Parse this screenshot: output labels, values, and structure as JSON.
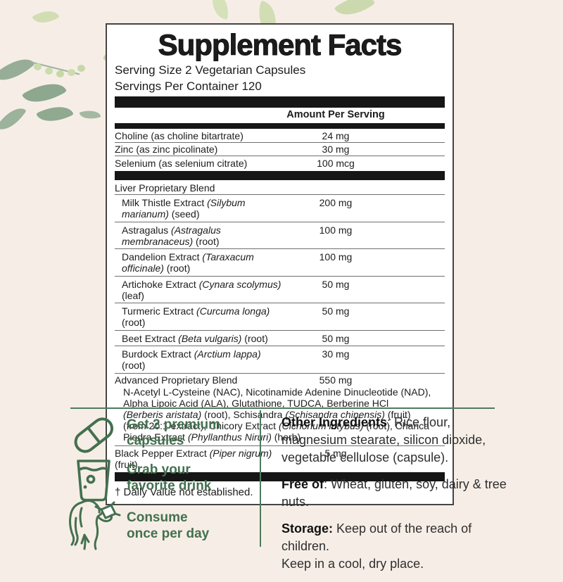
{
  "colors": {
    "background": "#f6eee6",
    "accent_green": "#44704f",
    "divider_green": "#4e7a5f",
    "bar_black": "#161616",
    "panel_white": "#ffffff"
  },
  "panel": {
    "title": "Supplement Facts",
    "serving_size": "Serving Size 2 Vegetarian Capsules",
    "servings_per_container": "Servings Per Container 120",
    "amount_header": "Amount Per Serving",
    "rows": [
      {
        "kind": "item",
        "segments": [
          {
            "t": "Choline (as choline bitartrate)"
          }
        ],
        "amount": "24 mg",
        "sep": true
      },
      {
        "kind": "item",
        "segments": [
          {
            "t": "Zinc (as zinc picolinate)"
          }
        ],
        "amount": "30 mg",
        "sep": true
      },
      {
        "kind": "item",
        "segments": [
          {
            "t": "Selenium (as selenium citrate)"
          }
        ],
        "amount": "100 mcg",
        "sep": false
      },
      {
        "kind": "bar"
      },
      {
        "kind": "item",
        "segments": [
          {
            "t": "Liver Proprietary Blend"
          }
        ],
        "amount": "",
        "sep": true
      },
      {
        "kind": "item",
        "indent": true,
        "segments": [
          {
            "t": "Milk Thistle Extract "
          },
          {
            "t": "(Silybum marianum)",
            "i": true
          },
          {
            "t": " (seed)"
          }
        ],
        "amount": "200 mg",
        "sep": true
      },
      {
        "kind": "item",
        "indent": true,
        "segments": [
          {
            "t": "Astragalus "
          },
          {
            "t": "(Astragalus membranaceus)",
            "i": true
          },
          {
            "t": " (root)"
          }
        ],
        "amount": "100 mg",
        "sep": true
      },
      {
        "kind": "item",
        "indent": true,
        "segments": [
          {
            "t": "Dandelion Extract "
          },
          {
            "t": "(Taraxacum officinale)",
            "i": true
          },
          {
            "t": " (root)"
          }
        ],
        "amount": "100 mg",
        "sep": true
      },
      {
        "kind": "item",
        "indent": true,
        "segments": [
          {
            "t": "Artichoke Extract "
          },
          {
            "t": "(Cynara scolymus)",
            "i": true
          },
          {
            "t": " (leaf)"
          }
        ],
        "amount": "50 mg",
        "sep": true
      },
      {
        "kind": "item",
        "indent": true,
        "segments": [
          {
            "t": "Turmeric Extract "
          },
          {
            "t": "(Curcuma longa)",
            "i": true
          },
          {
            "t": " (root)"
          }
        ],
        "amount": "50 mg",
        "sep": true
      },
      {
        "kind": "item",
        "indent": true,
        "segments": [
          {
            "t": "Beet Extract "
          },
          {
            "t": "(Beta vulgaris)",
            "i": true
          },
          {
            "t": " (root)"
          }
        ],
        "amount": "50 mg",
        "sep": true
      },
      {
        "kind": "item",
        "indent": true,
        "segments": [
          {
            "t": "Burdock Extract "
          },
          {
            "t": "(Arctium lappa)",
            "i": true
          },
          {
            "t": " (root)"
          }
        ],
        "amount": "30 mg",
        "sep": true
      },
      {
        "kind": "item",
        "segments": [
          {
            "t": "Advanced Proprietary Blend"
          }
        ],
        "amount": "550 mg",
        "sep": false
      },
      {
        "kind": "desc",
        "sep": true,
        "segments": [
          {
            "t": "N-Acetyl L-Cysteine (NAC), Nicotinamide Adenine Dinucleotide (NAD),\nAlpha Lipoic Acid (ALA), Glutathione, TUDCA, Berberine HCl\n"
          },
          {
            "t": "(Berberis aristata)",
            "i": true
          },
          {
            "t": " (root), Schisandra "
          },
          {
            "t": "(Schisandra chinensis)",
            "i": true
          },
          {
            "t": " (fruit)\n(from 20:1 extract), Chicory Extract "
          },
          {
            "t": "(Cichorium intybus)",
            "i": true
          },
          {
            "t": " (root), Chanca\nPiedra Extract "
          },
          {
            "t": "(Phyllanthus Niruri)",
            "i": true
          },
          {
            "t": " (herb)"
          }
        ]
      },
      {
        "kind": "item",
        "segments": [
          {
            "t": "Black Pepper Extract "
          },
          {
            "t": "(Piper nigrum)",
            "i": true
          },
          {
            "t": " (fruit)"
          }
        ],
        "amount": "5 mg",
        "sep": false
      }
    ],
    "footnote": "† Daily Value not established."
  },
  "instructions": [
    {
      "icon": "capsule-icon",
      "label": "Get 2 premium\ncapsules"
    },
    {
      "icon": "glass-icon",
      "label": "Grab your\nfavorite drink"
    },
    {
      "icon": "person-drinking-icon",
      "label": "Consume\nonce per day"
    }
  ],
  "info": [
    {
      "bold": "Other Ingredients",
      "text": ": Rice flour,\nmagnesium stearate, silicon dioxide,\nvegetable cellulose (capsule)."
    },
    {
      "bold": "Free of",
      "text": ": Wheat, gluten, soy, dairy & tree\nnuts."
    },
    {
      "bold": "Storage:",
      "text": " Keep out of the reach of children.\nKeep in a cool, dry place."
    }
  ]
}
